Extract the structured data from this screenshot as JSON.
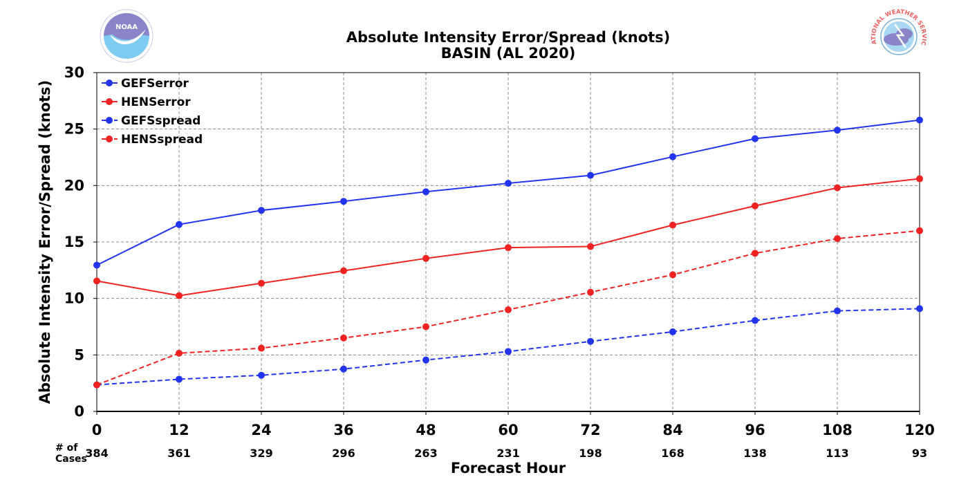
{
  "chart_data": {
    "type": "line",
    "title": "Absolute Intensity Error/Spread (knots)",
    "subtitle": "BASIN (AL 2020)",
    "xlabel": "Forecast Hour",
    "ylabel": "Absolute Intensity Error/Spread (knots)",
    "x": [
      0,
      12,
      24,
      36,
      48,
      60,
      72,
      84,
      96,
      108,
      120
    ],
    "x_tick_labels": [
      "0",
      "12",
      "24",
      "36",
      "48",
      "60",
      "72",
      "84",
      "96",
      "108",
      "120"
    ],
    "xlim": [
      0,
      120
    ],
    "ylim": [
      0,
      30
    ],
    "y_ticks": [
      0,
      5,
      10,
      15,
      20,
      25,
      30
    ],
    "grid": true,
    "legend_position": "top-left",
    "cases_label": "# of Cases",
    "cases": [
      "384",
      "361",
      "329",
      "296",
      "263",
      "231",
      "198",
      "168",
      "138",
      "113",
      "93"
    ],
    "series": [
      {
        "name": "GEFSerror",
        "color": "#2234f0",
        "dashed": false,
        "values": [
          12.95,
          16.55,
          17.8,
          18.6,
          19.45,
          20.2,
          20.9,
          22.55,
          24.15,
          24.9,
          25.8
        ]
      },
      {
        "name": "HENSerror",
        "color": "#f02222",
        "dashed": false,
        "values": [
          11.55,
          10.25,
          11.35,
          12.45,
          13.55,
          14.5,
          14.6,
          16.5,
          18.2,
          19.8,
          20.6
        ]
      },
      {
        "name": "GEFSspread",
        "color": "#2234f0",
        "dashed": true,
        "values": [
          2.35,
          2.85,
          3.2,
          3.75,
          4.55,
          5.3,
          6.2,
          7.05,
          8.05,
          8.9,
          9.1
        ]
      },
      {
        "name": "HENSspread",
        "color": "#f02222",
        "dashed": true,
        "values": [
          2.35,
          5.15,
          5.6,
          6.5,
          7.5,
          9.0,
          10.55,
          12.1,
          14.0,
          15.3,
          16.0
        ]
      }
    ]
  },
  "logos": {
    "left": {
      "icon": "noaa-logo",
      "text": "NOAA"
    },
    "right": {
      "icon": "national-weather-service-logo",
      "text": "NATIONAL WEATHER SERVICE"
    }
  }
}
